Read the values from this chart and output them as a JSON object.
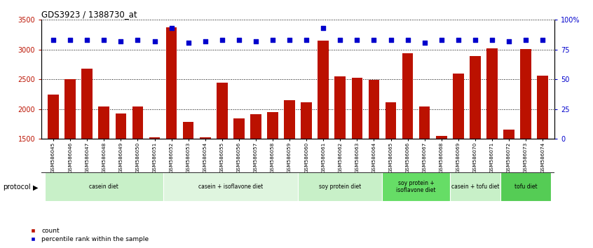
{
  "title": "GDS3923 / 1388730_at",
  "samples": [
    "GSM586045",
    "GSM586046",
    "GSM586047",
    "GSM586048",
    "GSM586049",
    "GSM586050",
    "GSM586051",
    "GSM586052",
    "GSM586053",
    "GSM586054",
    "GSM586055",
    "GSM586056",
    "GSM586057",
    "GSM586058",
    "GSM586059",
    "GSM586060",
    "GSM586061",
    "GSM586062",
    "GSM586063",
    "GSM586064",
    "GSM586065",
    "GSM586066",
    "GSM586067",
    "GSM586068",
    "GSM586069",
    "GSM586070",
    "GSM586071",
    "GSM586072",
    "GSM586073",
    "GSM586074"
  ],
  "counts": [
    2240,
    2500,
    2680,
    2040,
    1930,
    2040,
    1525,
    3380,
    1780,
    1530,
    2450,
    1850,
    1920,
    1950,
    2150,
    2110,
    3150,
    2550,
    2530,
    2490,
    2110,
    2940,
    2050,
    1555,
    2600,
    2890,
    3020,
    1660,
    3005,
    2560
  ],
  "percentile_ranks": [
    83,
    83,
    83,
    83,
    82,
    83,
    82,
    93,
    81,
    82,
    83,
    83,
    82,
    83,
    83,
    83,
    93,
    83,
    83,
    83,
    83,
    83,
    81,
    83,
    83,
    83,
    83,
    82,
    83,
    83
  ],
  "groups": [
    {
      "label": "casein diet",
      "start": 0,
      "end": 7,
      "color": "#c8f0c8"
    },
    {
      "label": "casein + isoflavone diet",
      "start": 7,
      "end": 15,
      "color": "#dff5df"
    },
    {
      "label": "soy protein diet",
      "start": 15,
      "end": 20,
      "color": "#c8f0c8"
    },
    {
      "label": "soy protein +\nisoflavone diet",
      "start": 20,
      "end": 24,
      "color": "#66dd66"
    },
    {
      "label": "casein + tofu diet",
      "start": 24,
      "end": 27,
      "color": "#c8f0c8"
    },
    {
      "label": "tofu diet",
      "start": 27,
      "end": 30,
      "color": "#55cc55"
    }
  ],
  "bar_color": "#bb1100",
  "dot_color": "#0000cc",
  "ylim_left": [
    1500,
    3500
  ],
  "ylim_right": [
    0,
    100
  ],
  "yticks_left": [
    1500,
    2000,
    2500,
    3000,
    3500
  ],
  "yticks_right": [
    0,
    25,
    50,
    75,
    100
  ],
  "ytick_labels_right": [
    "0",
    "25",
    "50",
    "75",
    "100%"
  ],
  "background_color": "#ffffff"
}
